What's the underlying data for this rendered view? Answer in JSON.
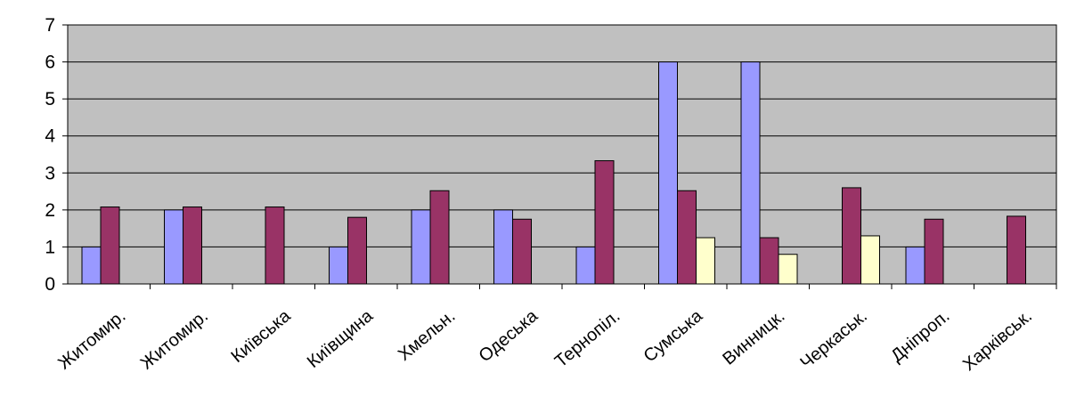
{
  "chart_data": {
    "type": "bar",
    "title": "",
    "xlabel": "",
    "ylabel": "",
    "categories": [
      "Житомир.",
      "Житомир.",
      "Київська",
      "Київщина",
      "Хмельн.",
      "Одеська",
      "Тернопіл.",
      "Сумська",
      "Винницк.",
      "Черкаськ.",
      "Дніпроп.",
      "Харківськ."
    ],
    "series": [
      {
        "color": "#9999ff",
        "values": [
          1,
          2,
          null,
          1,
          2,
          2,
          1,
          6,
          6,
          null,
          1,
          null
        ]
      },
      {
        "color": "#993366",
        "values": [
          2.08,
          2.08,
          2.08,
          1.8,
          2.52,
          1.75,
          3.33,
          2.52,
          1.25,
          2.6,
          1.75,
          1.83
        ]
      },
      {
        "color": "#ffffcc",
        "values": [
          null,
          null,
          null,
          null,
          null,
          null,
          null,
          1.25,
          0.8,
          1.3,
          null,
          null
        ]
      }
    ],
    "ylim": [
      0,
      7
    ],
    "yticks": [
      0,
      1,
      2,
      3,
      4,
      5,
      6,
      7
    ],
    "grid": true,
    "legend": "none",
    "plot_background": "#c0c0c0"
  }
}
